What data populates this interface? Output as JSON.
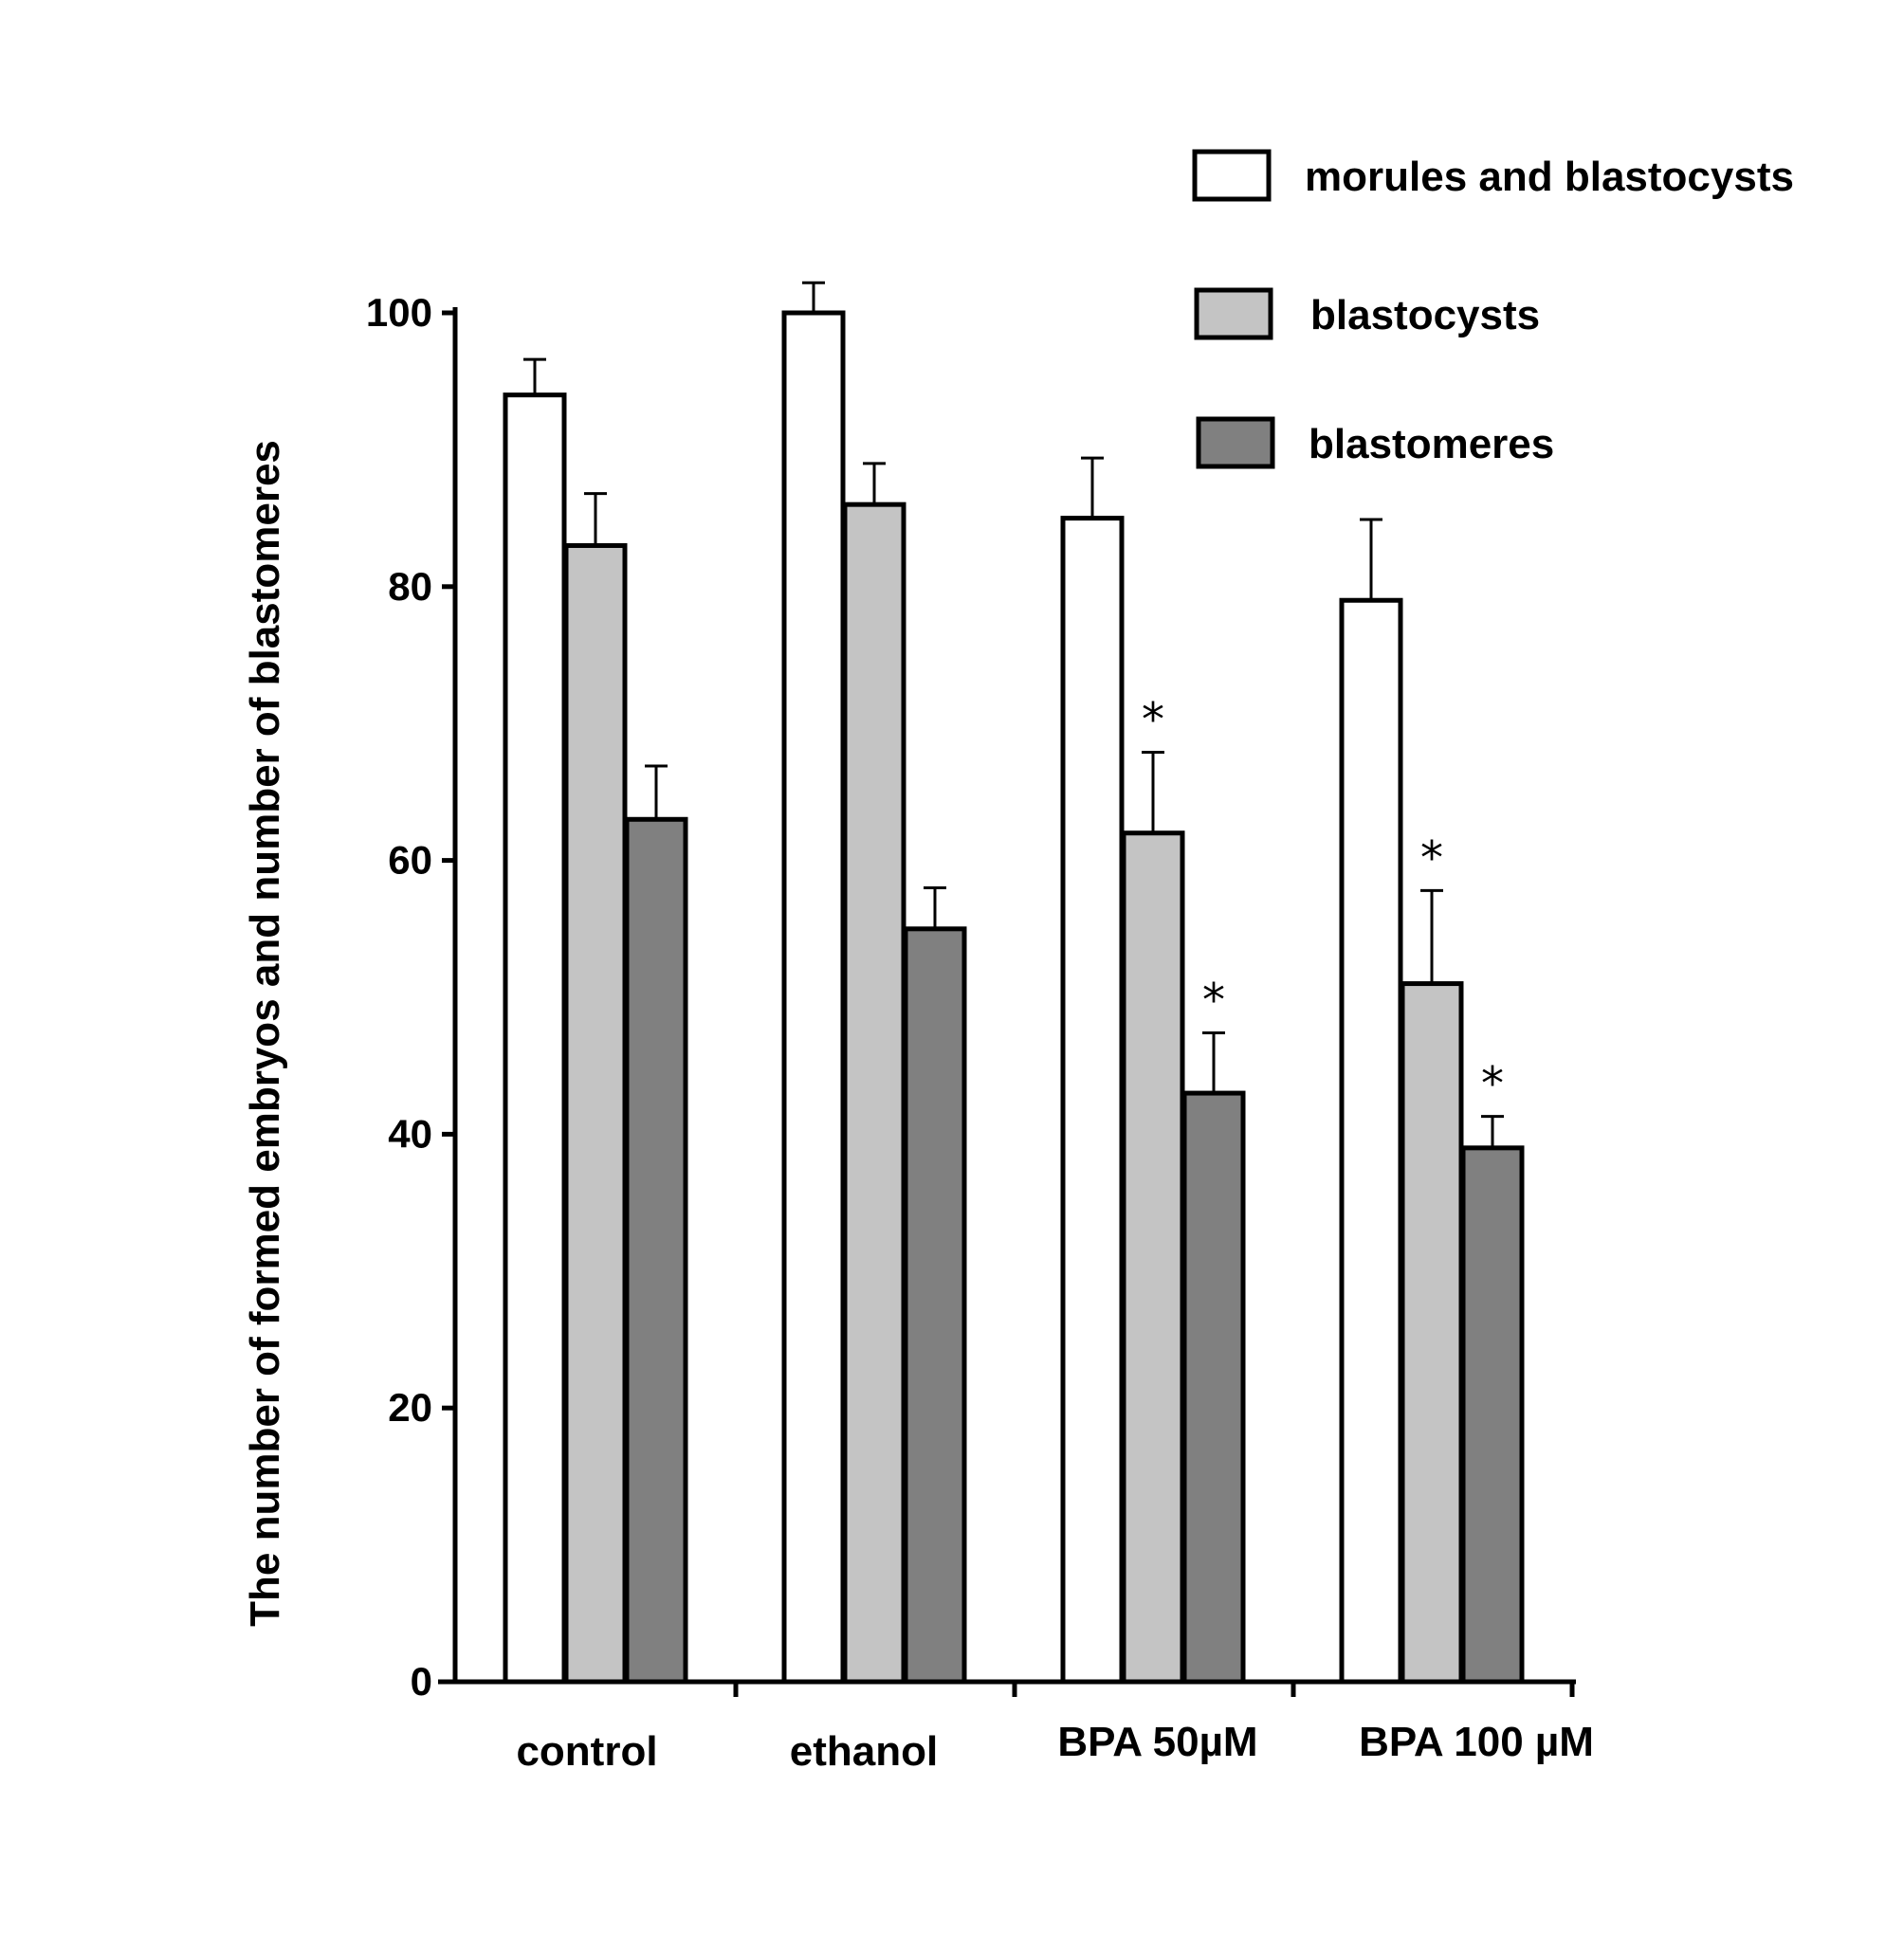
{
  "chart_data": {
    "type": "bar",
    "title": "",
    "xlabel": "",
    "ylabel": "The number of formed embryos  and number of  blastomeres",
    "ylim": [
      0,
      100
    ],
    "yticks": [
      0,
      20,
      40,
      60,
      80,
      100
    ],
    "categories": [
      "control",
      "ethanol",
      "BPA 50µM",
      "BPA 100 µM"
    ],
    "series": [
      {
        "name": "morules and blastocysts",
        "color": "#ffffff",
        "values": [
          94,
          100,
          85,
          79
        ],
        "errors": [
          2.6,
          2.2,
          4.4,
          5.9
        ],
        "significant": [
          false,
          false,
          false,
          false
        ]
      },
      {
        "name": "blastocysts",
        "color": "#c4c4c4",
        "values": [
          83,
          86,
          62,
          51
        ],
        "errors": [
          3.8,
          3.0,
          5.9,
          6.8
        ],
        "significant": [
          false,
          false,
          true,
          true
        ]
      },
      {
        "name": "blastomeres",
        "color": "#808080",
        "values": [
          63,
          55,
          43,
          39
        ],
        "errors": [
          3.9,
          3.0,
          4.4,
          2.3
        ],
        "significant": [
          false,
          false,
          true,
          true
        ]
      }
    ],
    "significance_marker": "*",
    "legend_position": "top-right",
    "grid": false
  }
}
